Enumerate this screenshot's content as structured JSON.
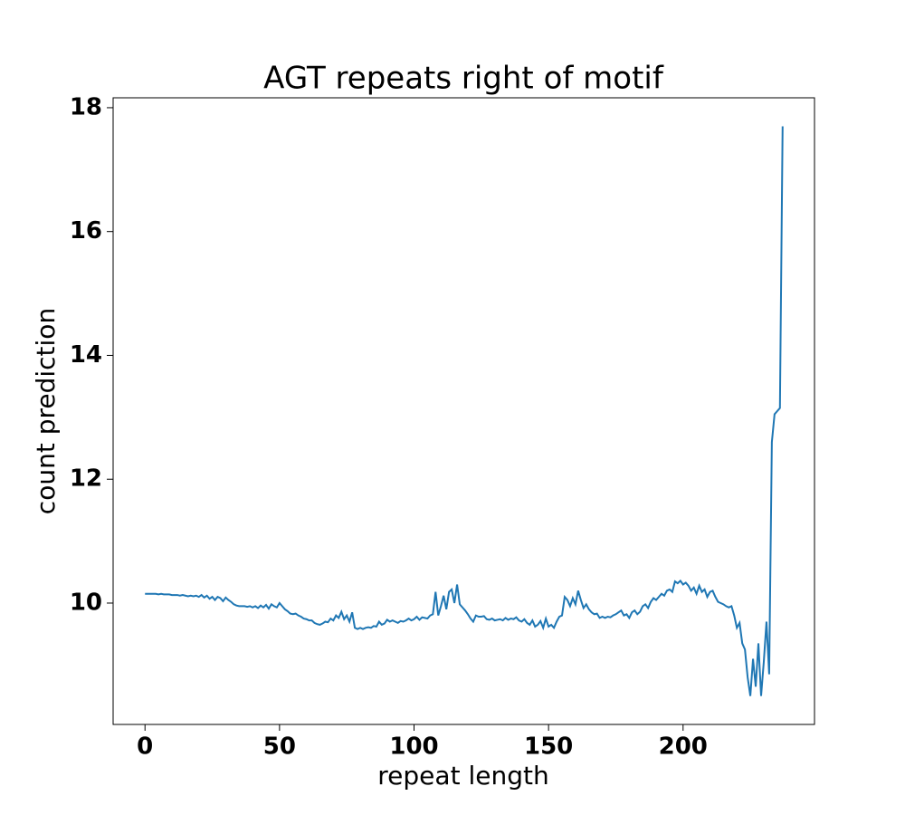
{
  "chart_data": {
    "type": "line",
    "title": "AGT repeats right of motif",
    "xlabel": "repeat length",
    "ylabel": "count prediction",
    "xlim": [
      -11.85,
      248.85
    ],
    "ylim": [
      8.04,
      18.16
    ],
    "xticks": [
      0,
      50,
      100,
      150,
      200
    ],
    "yticks": [
      10,
      12,
      14,
      16,
      18
    ],
    "x": [
      0,
      1,
      2,
      3,
      4,
      5,
      6,
      7,
      8,
      9,
      10,
      11,
      12,
      13,
      14,
      15,
      16,
      17,
      18,
      19,
      20,
      21,
      22,
      23,
      24,
      25,
      26,
      27,
      28,
      29,
      30,
      31,
      32,
      33,
      34,
      35,
      36,
      37,
      38,
      39,
      40,
      41,
      42,
      43,
      44,
      45,
      46,
      47,
      48,
      49,
      50,
      51,
      52,
      53,
      54,
      55,
      56,
      57,
      58,
      59,
      60,
      61,
      62,
      63,
      64,
      65,
      66,
      67,
      68,
      69,
      70,
      71,
      72,
      73,
      74,
      75,
      76,
      77,
      78,
      79,
      80,
      81,
      82,
      83,
      84,
      85,
      86,
      87,
      88,
      89,
      90,
      91,
      92,
      93,
      94,
      95,
      96,
      97,
      98,
      99,
      100,
      101,
      102,
      103,
      104,
      105,
      106,
      107,
      108,
      109,
      110,
      111,
      112,
      113,
      114,
      115,
      116,
      117,
      118,
      119,
      120,
      121,
      122,
      123,
      124,
      125,
      126,
      127,
      128,
      129,
      130,
      131,
      132,
      133,
      134,
      135,
      136,
      137,
      138,
      139,
      140,
      141,
      142,
      143,
      144,
      145,
      146,
      147,
      148,
      149,
      150,
      151,
      152,
      153,
      154,
      155,
      156,
      157,
      158,
      159,
      160,
      161,
      162,
      163,
      164,
      165,
      166,
      167,
      168,
      169,
      170,
      171,
      172,
      173,
      174,
      175,
      176,
      177,
      178,
      179,
      180,
      181,
      182,
      183,
      184,
      185,
      186,
      187,
      188,
      189,
      190,
      191,
      192,
      193,
      194,
      195,
      196,
      197,
      198,
      199,
      200,
      201,
      202,
      203,
      204,
      205,
      206,
      207,
      208,
      209,
      210,
      211,
      212,
      213,
      214,
      215,
      216,
      217,
      218,
      219,
      220,
      221,
      222,
      223,
      224,
      225,
      226,
      227,
      228,
      229,
      230,
      231,
      232,
      233,
      234,
      235,
      236,
      237
    ],
    "series": [
      {
        "color": "#1f77b4",
        "values": [
          10.15,
          10.15,
          10.15,
          10.15,
          10.15,
          10.14,
          10.15,
          10.14,
          10.14,
          10.14,
          10.13,
          10.13,
          10.13,
          10.12,
          10.13,
          10.12,
          10.11,
          10.12,
          10.11,
          10.12,
          10.1,
          10.13,
          10.09,
          10.12,
          10.07,
          10.1,
          10.05,
          10.1,
          10.08,
          10.03,
          10.09,
          10.05,
          10.02,
          9.98,
          9.96,
          9.95,
          9.95,
          9.95,
          9.94,
          9.95,
          9.93,
          9.95,
          9.92,
          9.96,
          9.93,
          9.97,
          9.91,
          9.98,
          9.95,
          9.93,
          10.0,
          9.95,
          9.9,
          9.87,
          9.83,
          9.82,
          9.83,
          9.8,
          9.78,
          9.75,
          9.74,
          9.72,
          9.72,
          9.68,
          9.66,
          9.65,
          9.67,
          9.7,
          9.69,
          9.75,
          9.72,
          9.8,
          9.76,
          9.86,
          9.74,
          9.8,
          9.7,
          9.85,
          9.6,
          9.58,
          9.6,
          9.58,
          9.6,
          9.61,
          9.6,
          9.63,
          9.62,
          9.7,
          9.65,
          9.67,
          9.73,
          9.7,
          9.72,
          9.7,
          9.68,
          9.71,
          9.7,
          9.72,
          9.75,
          9.72,
          9.74,
          9.78,
          9.73,
          9.77,
          9.76,
          9.75,
          9.8,
          9.82,
          10.18,
          9.8,
          9.95,
          10.12,
          9.9,
          10.18,
          10.22,
          10.0,
          10.3,
          9.98,
          9.93,
          9.88,
          9.82,
          9.75,
          9.7,
          9.8,
          9.78,
          9.78,
          9.79,
          9.74,
          9.73,
          9.75,
          9.72,
          9.73,
          9.74,
          9.72,
          9.76,
          9.73,
          9.75,
          9.74,
          9.77,
          9.72,
          9.7,
          9.74,
          9.68,
          9.65,
          9.72,
          9.62,
          9.65,
          9.71,
          9.6,
          9.75,
          9.62,
          9.65,
          9.6,
          9.7,
          9.78,
          9.8,
          10.1,
          10.05,
          9.95,
          10.08,
          9.98,
          10.2,
          10.05,
          9.92,
          9.98,
          9.9,
          9.85,
          9.82,
          9.83,
          9.76,
          9.78,
          9.76,
          9.78,
          9.77,
          9.8,
          9.82,
          9.85,
          9.88,
          9.8,
          9.82,
          9.76,
          9.85,
          9.88,
          9.82,
          9.86,
          9.95,
          9.98,
          9.92,
          10.02,
          10.08,
          10.05,
          10.1,
          10.15,
          10.12,
          10.2,
          10.22,
          10.18,
          10.35,
          10.32,
          10.36,
          10.3,
          10.33,
          10.28,
          10.2,
          10.25,
          10.15,
          10.28,
          10.18,
          10.22,
          10.1,
          10.18,
          10.2,
          10.1,
          10.02,
          10.0,
          9.98,
          9.95,
          9.93,
          9.95,
          9.8,
          9.6,
          9.68,
          9.35,
          9.25,
          8.8,
          8.5,
          9.1,
          8.65,
          9.35,
          8.5,
          9.05,
          9.7,
          8.85,
          12.6,
          13.05,
          13.1,
          13.15,
          17.7
        ]
      }
    ]
  }
}
